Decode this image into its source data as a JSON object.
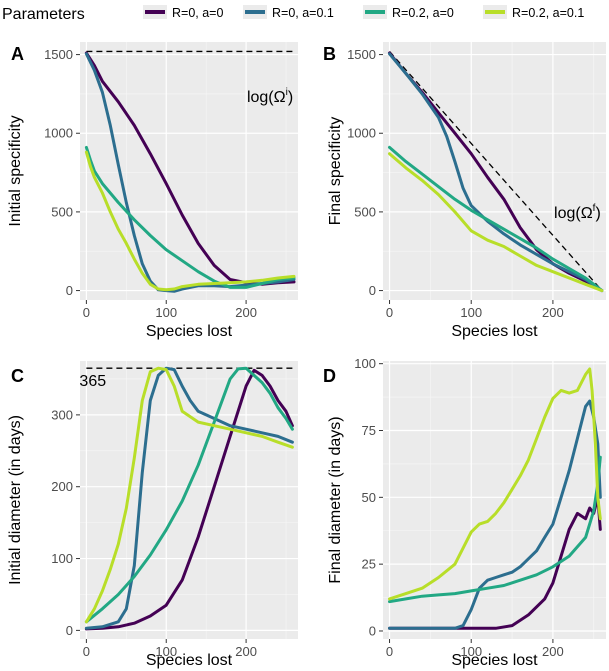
{
  "legend": {
    "title": "Parameters",
    "position": "top",
    "entries": [
      {
        "label": "R=0, a=0",
        "color": "#440154"
      },
      {
        "label": "R=0, a=0.1",
        "color": "#2c6e8f"
      },
      {
        "label": "R=0.2, a=0",
        "color": "#22a884"
      },
      {
        "label": "R=0.2, a=0.1",
        "color": "#b8de29"
      }
    ]
  },
  "chart_data": [
    {
      "type": "line",
      "panel": "A",
      "xlabel": "Species lost",
      "ylabel": "Initial specificity",
      "xlim": [
        -8,
        265
      ],
      "ylim": [
        -60,
        1580
      ],
      "xticks": [
        0,
        100,
        200
      ],
      "yticks": [
        0,
        500,
        1000,
        1500
      ],
      "grid": true,
      "reference_line": {
        "y": 1520,
        "x0": 0,
        "x1": 260,
        "style": "dashed"
      },
      "annotation": {
        "text": "log(Ω",
        "sup": "i",
        "close": ")",
        "x": 230,
        "y": 1200
      },
      "series": [
        {
          "name": "R=0, a=0",
          "x": [
            0,
            10,
            20,
            40,
            60,
            80,
            100,
            120,
            140,
            160,
            180,
            200,
            220,
            240,
            260
          ],
          "y": [
            1510,
            1430,
            1330,
            1200,
            1050,
            870,
            680,
            480,
            300,
            160,
            70,
            50,
            40,
            50,
            55
          ]
        },
        {
          "name": "R=0, a=0.1",
          "x": [
            0,
            10,
            20,
            30,
            40,
            50,
            60,
            70,
            80,
            90,
            100,
            110,
            120,
            140,
            160,
            180,
            200,
            220,
            240,
            260
          ],
          "y": [
            1505,
            1400,
            1260,
            1050,
            800,
            560,
            350,
            170,
            60,
            5,
            0,
            -5,
            10,
            30,
            30,
            25,
            35,
            45,
            55,
            70
          ]
        },
        {
          "name": "R=0.2, a=0",
          "x": [
            0,
            5,
            10,
            20,
            40,
            60,
            80,
            100,
            120,
            140,
            160,
            180,
            200,
            220,
            240,
            260
          ],
          "y": [
            910,
            830,
            760,
            680,
            560,
            450,
            350,
            260,
            190,
            120,
            60,
            20,
            20,
            45,
            70,
            80
          ]
        },
        {
          "name": "R=0.2, a=0.1",
          "x": [
            0,
            5,
            10,
            20,
            30,
            40,
            50,
            60,
            70,
            80,
            90,
            100,
            110,
            120,
            140,
            160,
            180,
            200,
            220,
            240,
            260
          ],
          "y": [
            880,
            790,
            720,
            620,
            500,
            390,
            300,
            200,
            110,
            40,
            10,
            5,
            10,
            25,
            40,
            45,
            50,
            55,
            65,
            80,
            90
          ]
        }
      ]
    },
    {
      "type": "line",
      "panel": "B",
      "xlabel": "Species lost",
      "ylabel": "Final specificity",
      "xlim": [
        -8,
        265
      ],
      "ylim": [
        -60,
        1580
      ],
      "xticks": [
        0,
        100,
        200
      ],
      "yticks": [
        0,
        500,
        1000,
        1500
      ],
      "grid": true,
      "reference_line": {
        "x0": 0,
        "y0": 1520,
        "x1": 260,
        "y1": 0,
        "style": "dashed"
      },
      "annotation": {
        "text": "log(Ω",
        "sup": "f",
        "close": ")",
        "x": 230,
        "y": 460
      },
      "series": [
        {
          "name": "R=0, a=0",
          "x": [
            0,
            20,
            40,
            60,
            80,
            100,
            120,
            140,
            160,
            180,
            200,
            220,
            240,
            260
          ],
          "y": [
            1510,
            1380,
            1260,
            1130,
            1000,
            870,
            720,
            580,
            400,
            260,
            170,
            110,
            60,
            0
          ]
        },
        {
          "name": "R=0, a=0.1",
          "x": [
            0,
            20,
            40,
            60,
            70,
            80,
            90,
            100,
            120,
            140,
            160,
            180,
            200,
            220,
            240,
            260
          ],
          "y": [
            1505,
            1380,
            1250,
            1100,
            980,
            820,
            650,
            540,
            440,
            360,
            290,
            230,
            170,
            120,
            70,
            0
          ]
        },
        {
          "name": "R=0.2, a=0",
          "x": [
            0,
            20,
            40,
            60,
            80,
            100,
            120,
            140,
            160,
            180,
            200,
            220,
            240,
            260
          ],
          "y": [
            910,
            820,
            740,
            660,
            580,
            510,
            450,
            390,
            330,
            270,
            200,
            140,
            80,
            0
          ]
        },
        {
          "name": "R=0.2, a=0.1",
          "x": [
            0,
            20,
            40,
            60,
            80,
            100,
            120,
            140,
            160,
            180,
            200,
            220,
            240,
            260
          ],
          "y": [
            870,
            780,
            700,
            610,
            500,
            380,
            320,
            280,
            220,
            160,
            120,
            80,
            40,
            0
          ]
        }
      ]
    },
    {
      "type": "line",
      "panel": "C",
      "xlabel": "Species lost",
      "ylabel": "Initial diameter (in days)",
      "xlim": [
        -8,
        265
      ],
      "ylim": [
        -12,
        375
      ],
      "xticks": [
        0,
        100,
        200
      ],
      "yticks": [
        0,
        100,
        200,
        300
      ],
      "grid": true,
      "reference_line": {
        "y": 365,
        "x0": 0,
        "x1": 260,
        "style": "dashed"
      },
      "annotation": {
        "text": "365",
        "x": 8,
        "y": 340
      },
      "series": [
        {
          "name": "R=0, a=0",
          "x": [
            0,
            20,
            40,
            60,
            80,
            100,
            120,
            140,
            160,
            180,
            200,
            210,
            220,
            230,
            240,
            250,
            258
          ],
          "y": [
            2,
            3,
            5,
            10,
            20,
            35,
            70,
            130,
            200,
            270,
            340,
            362,
            355,
            340,
            320,
            305,
            285
          ]
        },
        {
          "name": "R=0, a=0.1",
          "x": [
            0,
            20,
            40,
            50,
            60,
            70,
            80,
            90,
            100,
            110,
            120,
            130,
            140,
            160,
            180,
            200,
            220,
            240,
            258
          ],
          "y": [
            3,
            5,
            12,
            30,
            90,
            220,
            320,
            355,
            365,
            363,
            340,
            320,
            305,
            295,
            285,
            280,
            275,
            270,
            262
          ]
        },
        {
          "name": "R=0.2, a=0",
          "x": [
            0,
            20,
            40,
            60,
            80,
            100,
            120,
            140,
            160,
            180,
            190,
            200,
            210,
            220,
            230,
            240,
            250,
            258
          ],
          "y": [
            12,
            30,
            50,
            75,
            105,
            140,
            180,
            230,
            290,
            350,
            364,
            365,
            355,
            345,
            330,
            310,
            295,
            280
          ]
        },
        {
          "name": "R=0.2, a=0.1",
          "x": [
            0,
            10,
            20,
            30,
            40,
            50,
            60,
            70,
            80,
            90,
            100,
            110,
            120,
            140,
            160,
            180,
            200,
            220,
            240,
            258
          ],
          "y": [
            12,
            30,
            55,
            85,
            120,
            170,
            240,
            320,
            360,
            365,
            363,
            340,
            305,
            290,
            285,
            280,
            275,
            270,
            262,
            255
          ]
        }
      ]
    },
    {
      "type": "line",
      "panel": "D",
      "xlabel": "Species lost",
      "ylabel": "Final diameter (in days)",
      "xlim": [
        -8,
        265
      ],
      "ylim": [
        -3,
        101
      ],
      "xticks": [
        0,
        100,
        200
      ],
      "yticks": [
        0,
        25,
        50,
        75,
        100
      ],
      "grid": true,
      "series": [
        {
          "name": "R=0, a=0",
          "x": [
            0,
            50,
            100,
            130,
            150,
            170,
            190,
            200,
            210,
            220,
            230,
            240,
            245,
            250,
            255,
            258
          ],
          "y": [
            1,
            1,
            1,
            1,
            2,
            6,
            12,
            18,
            28,
            38,
            44,
            42,
            46,
            44,
            50,
            38
          ]
        },
        {
          "name": "R=0, a=0.1",
          "x": [
            0,
            50,
            80,
            90,
            100,
            110,
            120,
            130,
            140,
            150,
            160,
            170,
            180,
            190,
            200,
            210,
            220,
            230,
            240,
            245,
            250,
            255,
            258
          ],
          "y": [
            1,
            1,
            1,
            2,
            8,
            16,
            19,
            20,
            21,
            22,
            24,
            27,
            30,
            35,
            40,
            50,
            60,
            72,
            84,
            86,
            80,
            70,
            50
          ]
        },
        {
          "name": "R=0.2, a=0",
          "x": [
            0,
            20,
            40,
            60,
            80,
            100,
            120,
            140,
            160,
            180,
            200,
            220,
            240,
            250,
            255,
            258
          ],
          "y": [
            11,
            12,
            13,
            13.5,
            14,
            15,
            16,
            17,
            19,
            21,
            24,
            28,
            35,
            45,
            55,
            65
          ]
        },
        {
          "name": "R=0.2, a=0.1",
          "x": [
            0,
            20,
            40,
            60,
            80,
            90,
            100,
            110,
            120,
            130,
            140,
            150,
            160,
            170,
            180,
            190,
            200,
            210,
            220,
            230,
            240,
            245,
            248,
            252,
            255,
            258
          ],
          "y": [
            12,
            14,
            16,
            20,
            25,
            31,
            37,
            40,
            41,
            44,
            48,
            53,
            58,
            64,
            72,
            80,
            87,
            90,
            89,
            90,
            96,
            98,
            90,
            70,
            50,
            42
          ]
        }
      ]
    }
  ]
}
